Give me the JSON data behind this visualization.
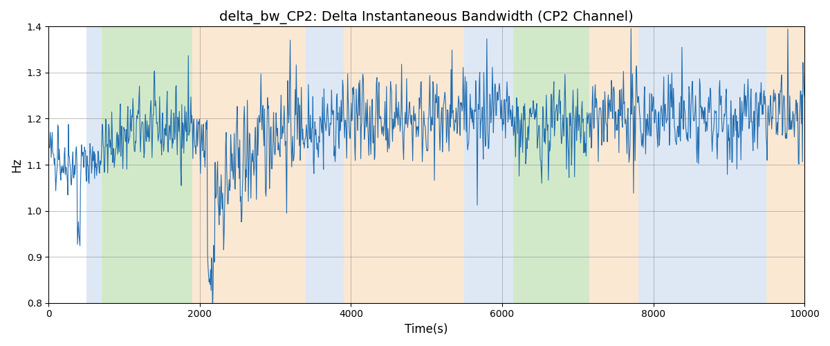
{
  "title": "delta_bw_CP2: Delta Instantaneous Bandwidth (CP2 Channel)",
  "xlabel": "Time(s)",
  "ylabel": "Hz",
  "xlim": [
    0,
    10000
  ],
  "ylim": [
    0.8,
    1.4
  ],
  "line_color": "#1f6cb0",
  "line_width": 0.8,
  "bg_regions": [
    {
      "xmin": 500,
      "xmax": 700,
      "color": "#aec6e8",
      "alpha": 0.4
    },
    {
      "xmin": 700,
      "xmax": 1900,
      "color": "#90c97a",
      "alpha": 0.4
    },
    {
      "xmin": 1900,
      "xmax": 3400,
      "color": "#f5c792",
      "alpha": 0.4
    },
    {
      "xmin": 3400,
      "xmax": 3900,
      "color": "#aec6e8",
      "alpha": 0.4
    },
    {
      "xmin": 3900,
      "xmax": 5500,
      "color": "#f5c792",
      "alpha": 0.4
    },
    {
      "xmin": 5500,
      "xmax": 6150,
      "color": "#aec6e8",
      "alpha": 0.4
    },
    {
      "xmin": 6150,
      "xmax": 7150,
      "color": "#90c97a",
      "alpha": 0.4
    },
    {
      "xmin": 7150,
      "xmax": 7800,
      "color": "#f5c792",
      "alpha": 0.4
    },
    {
      "xmin": 7800,
      "xmax": 9500,
      "color": "#aec6e8",
      "alpha": 0.4
    },
    {
      "xmin": 9500,
      "xmax": 10100,
      "color": "#f5c792",
      "alpha": 0.4
    }
  ],
  "seed": 42,
  "n_points": 1500,
  "title_fontsize": 14
}
